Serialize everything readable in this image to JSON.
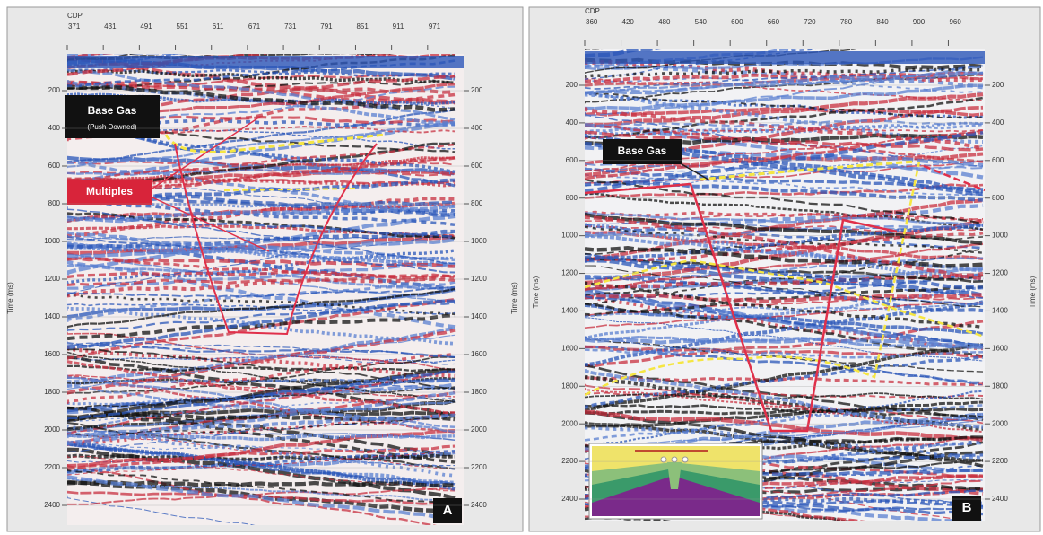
{
  "panels": [
    {
      "cdp_label": "CDP",
      "cdp_ticks": [
        "371",
        "431",
        "491",
        "551",
        "611",
        "671",
        "731",
        "791",
        "851",
        "911",
        "971"
      ],
      "time_ticks": [
        "200",
        "400",
        "600",
        "800",
        "1000",
        "1200",
        "1400",
        "1600",
        "1800",
        "2000",
        "2200",
        "2400"
      ],
      "time_label_left": "Time (ms)",
      "time_label_right": "Time (ms)",
      "annotations": {
        "base_gas": "Base Gas",
        "base_gas_note": "(Push Downed)",
        "multiples": "Multiples"
      },
      "panel_label": "A"
    },
    {
      "cdp_label": "CDP",
      "cdp_ticks": [
        "360",
        "420",
        "480",
        "540",
        "600",
        "660",
        "720",
        "780",
        "840",
        "900",
        "960"
      ],
      "time_ticks": [
        "200",
        "400",
        "600",
        "800",
        "1000",
        "1200",
        "1400",
        "1600",
        "1800",
        "2000",
        "2200",
        "2400"
      ],
      "time_label_left": "Time (ms)",
      "time_label_right": "Time (ms)",
      "annotations": {
        "base_gas": "Base Gas"
      },
      "panel_label": "B"
    }
  ]
}
